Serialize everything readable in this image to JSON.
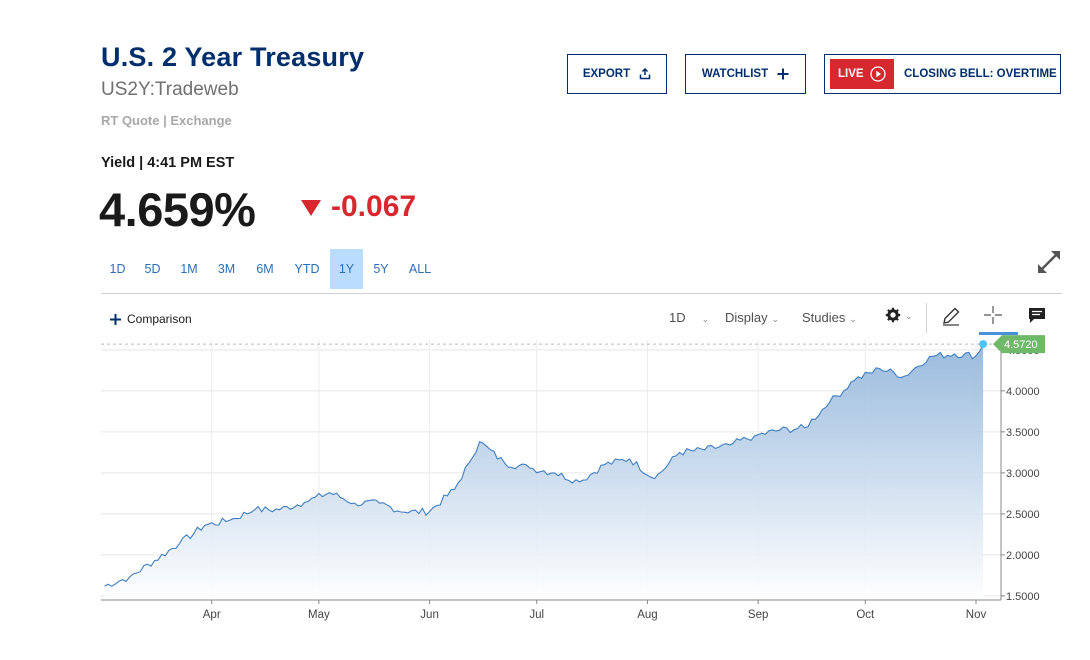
{
  "header": {
    "title": "U.S. 2 Year Treasury",
    "symbol": "US2Y:Tradeweb",
    "quote_source": "RT Quote | Exchange"
  },
  "buttons": {
    "export_label": "EXPORT",
    "watchlist_label": "WATCHLIST",
    "live_label": "LIVE",
    "closing_bell_label": "CLOSING BELL: OVERTIME"
  },
  "quote": {
    "yield_label": "Yield | 4:41 PM EST",
    "price": "4.659%",
    "change": "-0.067",
    "direction": "down"
  },
  "ranges": [
    "1D",
    "5D",
    "1M",
    "3M",
    "6M",
    "YTD",
    "1Y",
    "5Y",
    "ALL"
  ],
  "active_range": "1Y",
  "toolbar": {
    "comparison_label": "Comparison",
    "interval_label": "1D",
    "display_label": "Display",
    "studies_label": "Studies"
  },
  "colors": {
    "brand": "#002f6c",
    "accent": "#2c6fb5",
    "down": "#d8282f",
    "line": "#3f7fc0",
    "last_badge": "#6fb96a"
  },
  "chart_data": {
    "type": "area",
    "x_ticks": [
      "Apr",
      "May",
      "Jun",
      "Jul",
      "Aug",
      "Sep",
      "Oct",
      "Nov"
    ],
    "y_ticks": [
      "1.5000",
      "2.0000",
      "2.5000",
      "3.0000",
      "3.5000",
      "4.0000",
      "4.5000"
    ],
    "ylim": [
      1.45,
      4.62
    ],
    "last_value": "4.5720",
    "grid": true,
    "series": [
      {
        "x": [
          "Mar 02",
          "Mar 09",
          "Mar 16",
          "Mar 23",
          "Mar 30",
          "Apr 06",
          "Apr 13",
          "Apr 20",
          "Apr 27",
          "May 04",
          "May 11",
          "May 18",
          "May 25",
          "Jun 01",
          "Jun 08",
          "Jun 12",
          "Jun 15",
          "Jun 22",
          "Jun 29",
          "Jul 06",
          "Jul 13",
          "Jul 20",
          "Jul 27",
          "Aug 03",
          "Aug 10",
          "Aug 17",
          "Aug 24",
          "Aug 31",
          "Sep 07",
          "Sep 14",
          "Sep 21",
          "Sep 28",
          "Oct 05",
          "Oct 12",
          "Oct 19",
          "Oct 26",
          "Nov 01",
          "Nov 03"
        ],
        "values": [
          1.62,
          1.73,
          1.93,
          2.14,
          2.36,
          2.42,
          2.55,
          2.55,
          2.64,
          2.76,
          2.63,
          2.63,
          2.52,
          2.53,
          2.8,
          3.12,
          3.38,
          3.12,
          3.06,
          3.0,
          2.89,
          3.1,
          3.17,
          2.93,
          3.25,
          3.28,
          3.34,
          3.45,
          3.52,
          3.55,
          3.86,
          4.13,
          4.27,
          4.18,
          4.42,
          4.45,
          4.43,
          4.57
        ]
      }
    ]
  }
}
